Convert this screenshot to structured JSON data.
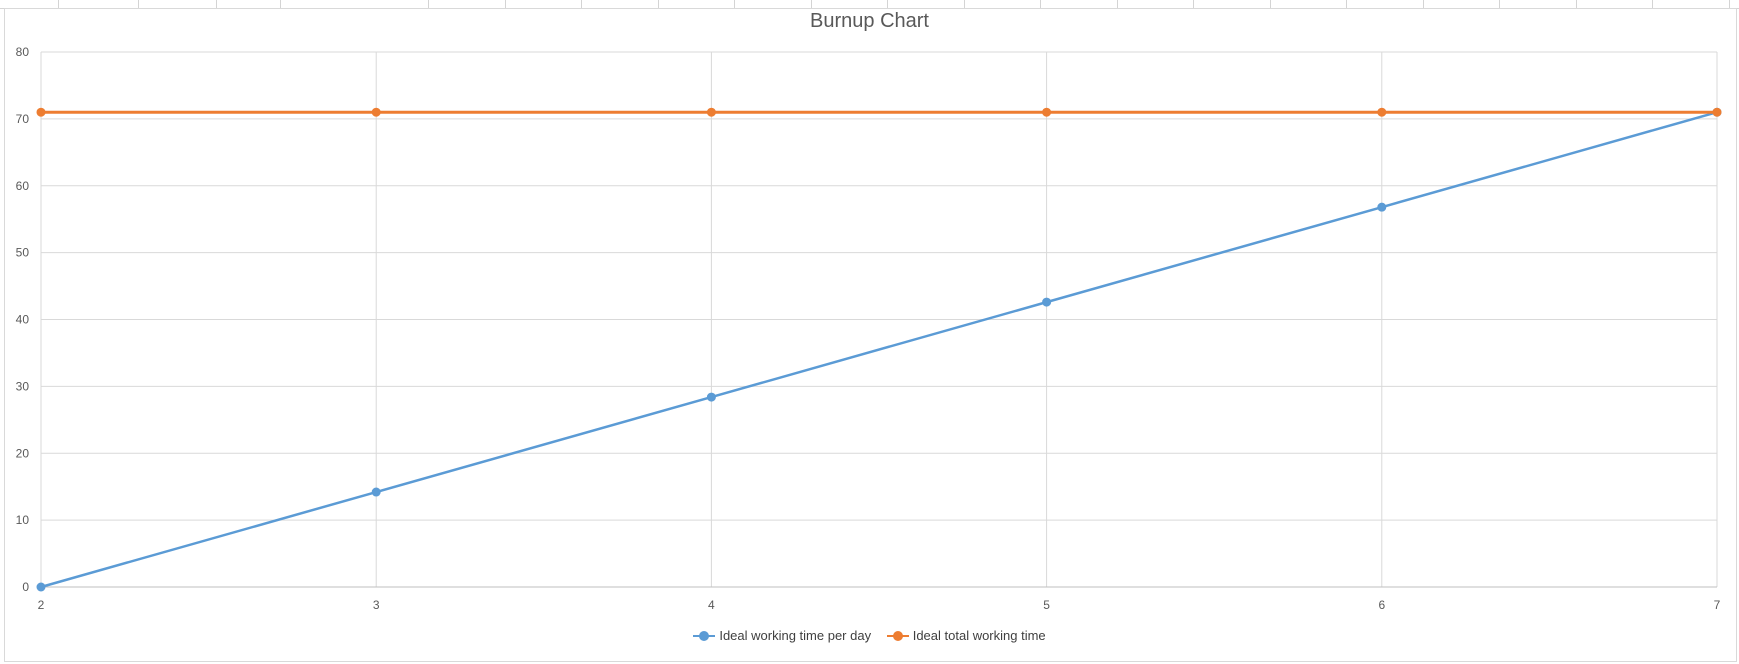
{
  "chart_data": {
    "type": "line",
    "title": "Burnup Chart",
    "xlabel": "",
    "ylabel": "",
    "x": [
      2,
      3,
      4,
      5,
      6,
      7
    ],
    "xlim": [
      2,
      7
    ],
    "ylim": [
      0,
      80
    ],
    "y_ticks": [
      0,
      10,
      20,
      30,
      40,
      50,
      60,
      70,
      80
    ],
    "grid": true,
    "legend_position": "bottom",
    "series": [
      {
        "name": "Ideal working time per day",
        "color": "#5B9BD5",
        "values": [
          0,
          14.2,
          28.4,
          42.6,
          56.8,
          71
        ]
      },
      {
        "name": "Ideal total working time",
        "color": "#ED7D31",
        "values": [
          71,
          71,
          71,
          71,
          71,
          71
        ]
      }
    ]
  }
}
